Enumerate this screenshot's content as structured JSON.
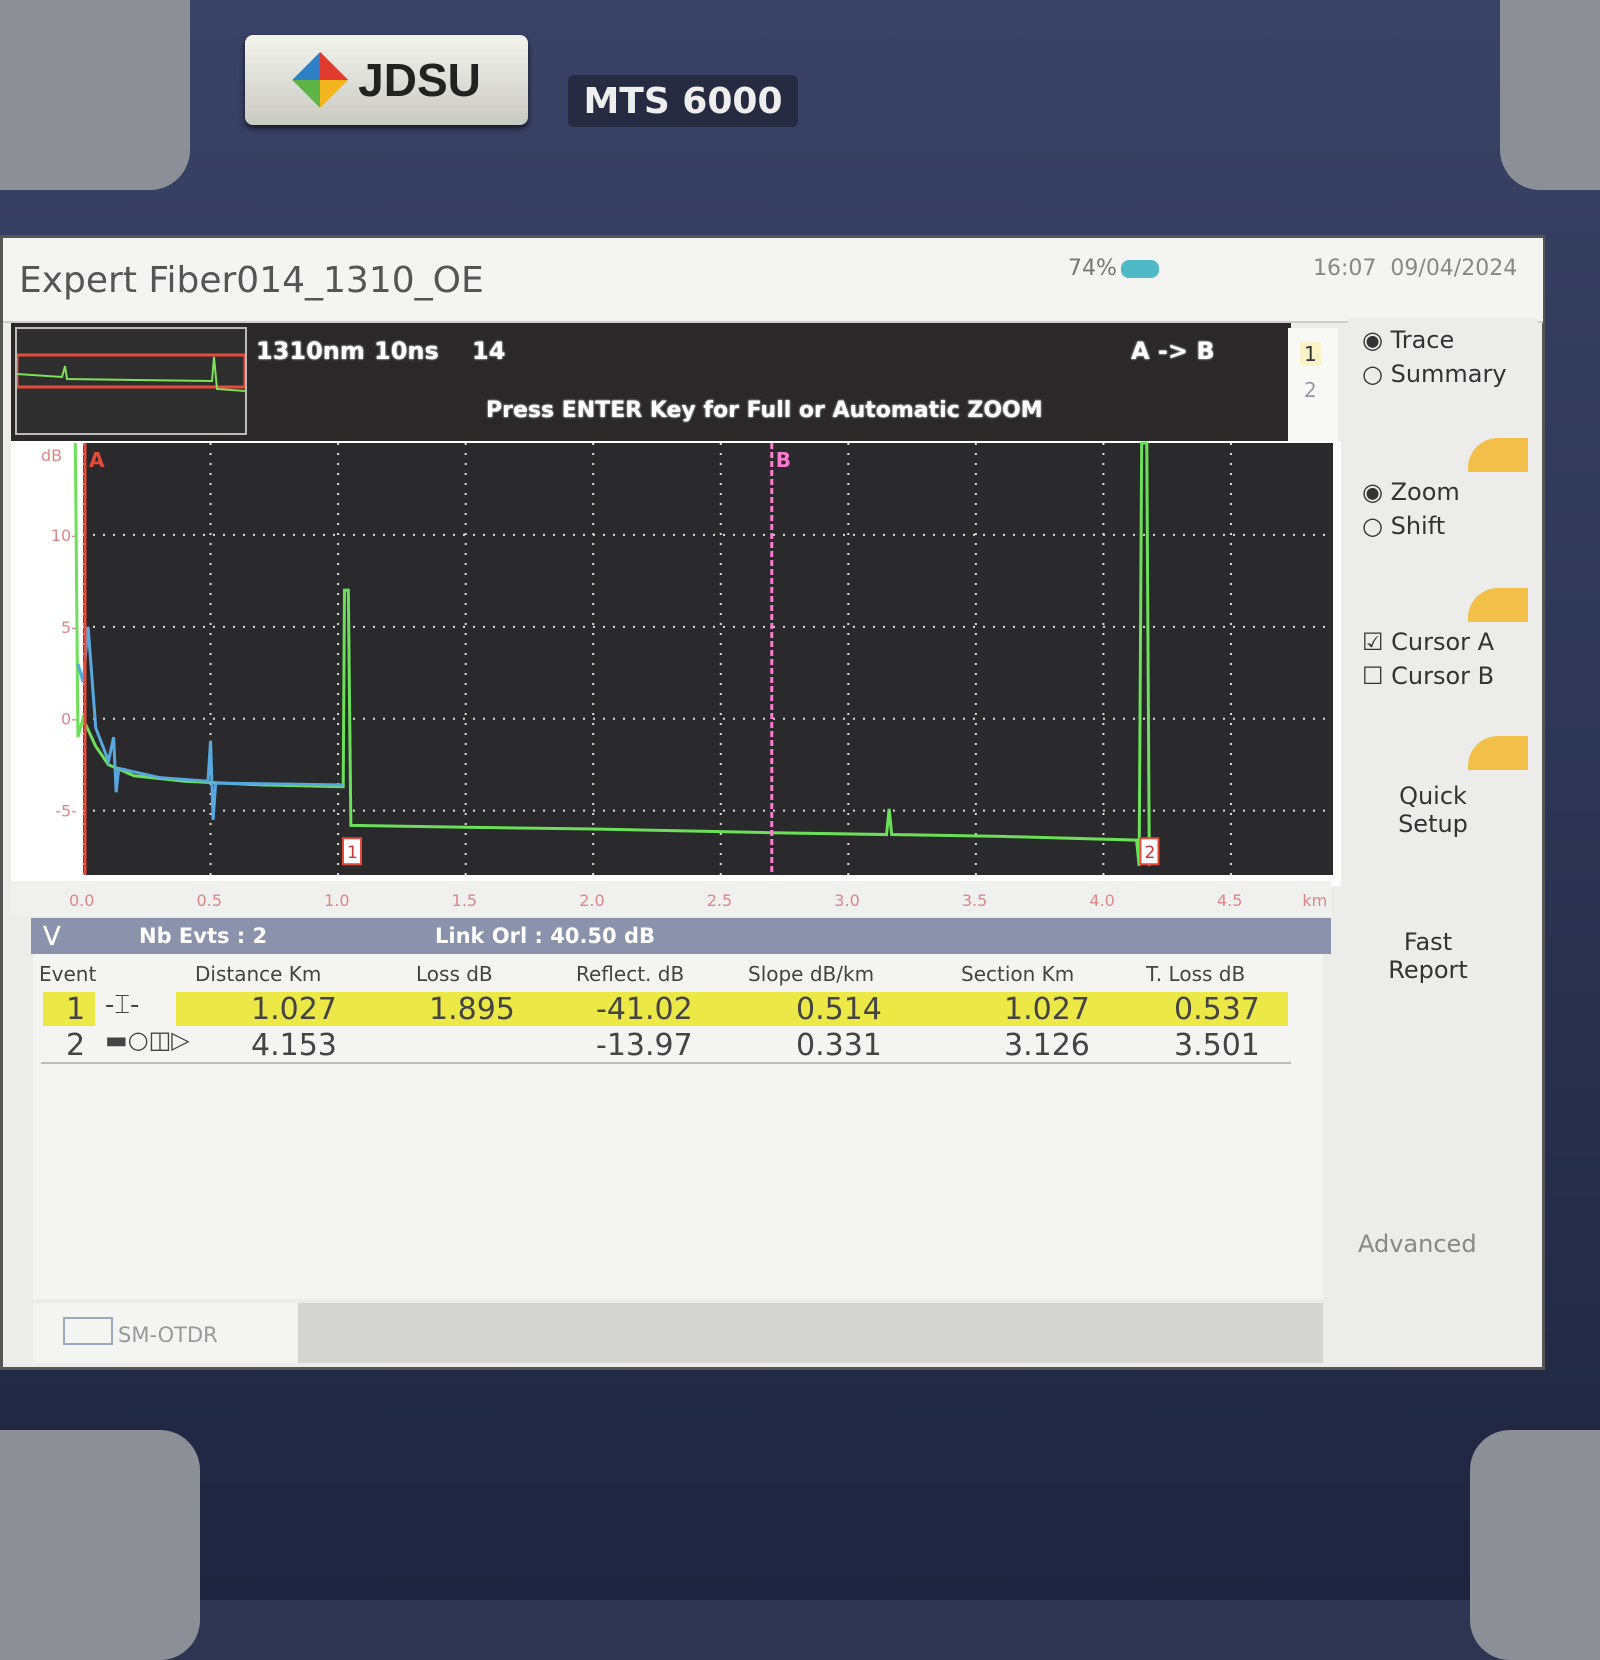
{
  "device": {
    "brand": "JDSU",
    "model": "MTS 6000"
  },
  "header": {
    "title": "Expert Fiber014_1310_OE",
    "battery": "74%",
    "time": "16:07",
    "date": "09/04/2024"
  },
  "info": {
    "wavelength": "1310nm",
    "pulse": "10ns",
    "value": "14",
    "direction": "A -> B",
    "message": "Press ENTER Key for Full or Automatic ZOOM",
    "trace_tabs": [
      "1",
      "2"
    ]
  },
  "chart_data": {
    "type": "line",
    "ylabel": "dB",
    "xunit": "km",
    "x_ticks": [
      "0.0",
      "0.5",
      "1.0",
      "1.5",
      "2.0",
      "2.5",
      "3.0",
      "3.5",
      "4.0",
      "4.5"
    ],
    "y_ticks": [
      "10",
      "5",
      "0",
      "-5"
    ],
    "xlim": [
      0,
      4.9
    ],
    "ylim": [
      -8.5,
      15
    ],
    "grid": true,
    "cursors": [
      {
        "label": "A",
        "x": 0.0,
        "color": "#e84a3a"
      },
      {
        "label": "B",
        "x": 2.7,
        "color": "#ff7ad0"
      }
    ],
    "event_markers": [
      {
        "label": "1",
        "x": 1.027
      },
      {
        "label": "2",
        "x": 4.153
      }
    ],
    "series": [
      {
        "color": "#6de05a",
        "points": [
          [
            -0.03,
            15
          ],
          [
            -0.02,
            -1
          ],
          [
            0.0,
            0
          ],
          [
            0.05,
            -1.5
          ],
          [
            0.1,
            -2.5
          ],
          [
            0.2,
            -3.1
          ],
          [
            0.4,
            -3.4
          ],
          [
            0.7,
            -3.6
          ],
          [
            1.02,
            -3.7
          ],
          [
            1.025,
            7
          ],
          [
            1.04,
            7
          ],
          [
            1.05,
            -5.8
          ],
          [
            1.5,
            -5.9
          ],
          [
            2.0,
            -6.0
          ],
          [
            2.7,
            -6.2
          ],
          [
            3.15,
            -6.3
          ],
          [
            3.16,
            -4.9
          ],
          [
            3.17,
            -6.3
          ],
          [
            3.6,
            -6.4
          ],
          [
            4.13,
            -6.6
          ],
          [
            4.14,
            -8
          ],
          [
            4.15,
            15
          ],
          [
            4.17,
            15
          ],
          [
            4.18,
            -8
          ]
        ]
      },
      {
        "color": "#58a8e0",
        "points": [
          [
            -0.02,
            3
          ],
          [
            0.0,
            2
          ],
          [
            0.02,
            5
          ],
          [
            0.05,
            -0.5
          ],
          [
            0.1,
            -2.3
          ],
          [
            0.12,
            -1
          ],
          [
            0.13,
            -4
          ],
          [
            0.14,
            -2.7
          ],
          [
            0.3,
            -3.2
          ],
          [
            0.49,
            -3.4
          ],
          [
            0.5,
            -1.2
          ],
          [
            0.51,
            -5.5
          ],
          [
            0.52,
            -3.5
          ],
          [
            1.0,
            -3.6
          ],
          [
            1.02,
            -3.6
          ]
        ]
      }
    ]
  },
  "table": {
    "nb_events": "Nb Evts : 2",
    "link_orl": "Link Orl : 40.50 dB",
    "headers": [
      "Event",
      "Distance  Km",
      "Loss dB",
      "Reflect. dB",
      "Slope  dB/km",
      "Section Km",
      "T. Loss dB"
    ],
    "rows": [
      {
        "event": "1",
        "icon": "splice-connector-icon",
        "distance": "1.027",
        "loss": "1.895",
        "reflect": "-41.02",
        "slope": "0.514",
        "section": "1.027",
        "tloss": "0.537",
        "highlight_color": "#ece845"
      },
      {
        "event": "2",
        "icon": "fiber-end-icon",
        "distance": "4.153",
        "loss": "",
        "reflect": "-13.97",
        "slope": "0.331",
        "section": "3.126",
        "tloss": "3.501"
      }
    ]
  },
  "sidebar": {
    "trace": "Trace",
    "summary": "Summary",
    "zoom": "Zoom",
    "shift": "Shift",
    "cursor_a": "Cursor A",
    "cursor_b": "Cursor B",
    "quick_setup": "Quick Setup",
    "fast_report": "Fast Report",
    "advanced": "Advanced"
  },
  "footer": {
    "tab": "SM-OTDR"
  }
}
